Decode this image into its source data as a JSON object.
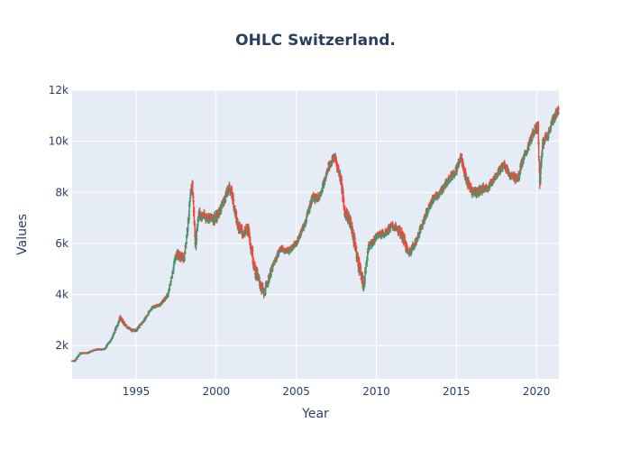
{
  "chart_data": {
    "type": "ohlc",
    "title": "OHLC Switzerland.",
    "xlabel": "Year",
    "ylabel": "Values",
    "xlim": [
      1991.0,
      2021.4
    ],
    "ylim": [
      700,
      12000
    ],
    "x_ticks": [
      1995,
      2000,
      2005,
      2010,
      2015,
      2020
    ],
    "x_tick_labels": [
      "1995",
      "2000",
      "2005",
      "2010",
      "2015",
      "2020"
    ],
    "y_ticks": [
      2000,
      4000,
      6000,
      8000,
      10000,
      12000
    ],
    "y_tick_labels": [
      "2k",
      "4k",
      "6k",
      "8k",
      "10k",
      "12k"
    ],
    "grid": true,
    "legend": "none",
    "colors": {
      "increasing": "#3d9970",
      "decreasing": "#ff4136",
      "plot_bg": "#e5ecf6",
      "grid": "#ffffff",
      "text": "#2a3f5f"
    },
    "series": [
      {
        "x": [
          1991.0,
          1991.2,
          1991.5,
          1992.0,
          1992.5,
          1993.0,
          1993.5,
          1994.0,
          1994.3,
          1994.7,
          1995.0,
          1995.5,
          1996.0,
          1996.5,
          1997.0,
          1997.5,
          1998.0,
          1998.5,
          1998.7,
          1998.9,
          1999.0,
          1999.5,
          2000.0,
          2000.5,
          2000.8,
          2001.0,
          2001.3,
          2001.7,
          2002.0,
          2002.4,
          2002.7,
          2003.0,
          2003.2,
          2003.6,
          2004.0,
          2004.5,
          2005.0,
          2005.5,
          2006.0,
          2006.4,
          2006.8,
          2007.0,
          2007.4,
          2007.8,
          2008.0,
          2008.4,
          2008.8,
          2009.0,
          2009.2,
          2009.5,
          2010.0,
          2010.5,
          2011.0,
          2011.4,
          2011.7,
          2012.0,
          2012.5,
          2013.0,
          2013.5,
          2014.0,
          2014.5,
          2015.0,
          2015.3,
          2015.6,
          2016.0,
          2016.5,
          2017.0,
          2017.5,
          2018.0,
          2018.4,
          2018.9,
          2019.0,
          2019.5,
          2019.9,
          2020.1,
          2020.2,
          2020.4,
          2020.7,
          2021.0,
          2021.35
        ],
        "close": [
          1400,
          1420,
          1700,
          1720,
          1850,
          1850,
          2300,
          3100,
          2800,
          2600,
          2600,
          3000,
          3500,
          3600,
          4000,
          5600,
          5400,
          8400,
          6000,
          7200,
          7100,
          7000,
          7000,
          7700,
          8200,
          7900,
          6800,
          6400,
          6600,
          5000,
          4500,
          4000,
          4500,
          5200,
          5800,
          5700,
          6000,
          6700,
          7800,
          7800,
          8500,
          9000,
          9400,
          8500,
          7300,
          6800,
          5500,
          4900,
          4300,
          5800,
          6300,
          6400,
          6700,
          6500,
          6200,
          5600,
          6100,
          7000,
          7700,
          8000,
          8500,
          8900,
          9400,
          8500,
          8000,
          8100,
          8200,
          8700,
          9100,
          8600,
          8600,
          9000,
          9800,
          10500,
          10600,
          8300,
          10000,
          10200,
          10800,
          11200
        ],
        "range": [
          60,
          60,
          60,
          60,
          60,
          60,
          80,
          150,
          120,
          100,
          100,
          100,
          100,
          100,
          150,
          300,
          250,
          500,
          450,
          400,
          350,
          300,
          350,
          300,
          300,
          350,
          400,
          350,
          400,
          450,
          400,
          350,
          300,
          250,
          200,
          200,
          200,
          250,
          300,
          250,
          250,
          300,
          300,
          400,
          400,
          400,
          500,
          450,
          400,
          300,
          250,
          250,
          250,
          300,
          350,
          300,
          250,
          250,
          250,
          250,
          250,
          300,
          300,
          400,
          350,
          300,
          250,
          250,
          300,
          300,
          300,
          300,
          300,
          300,
          350,
          600,
          400,
          300,
          300,
          300
        ]
      }
    ]
  }
}
